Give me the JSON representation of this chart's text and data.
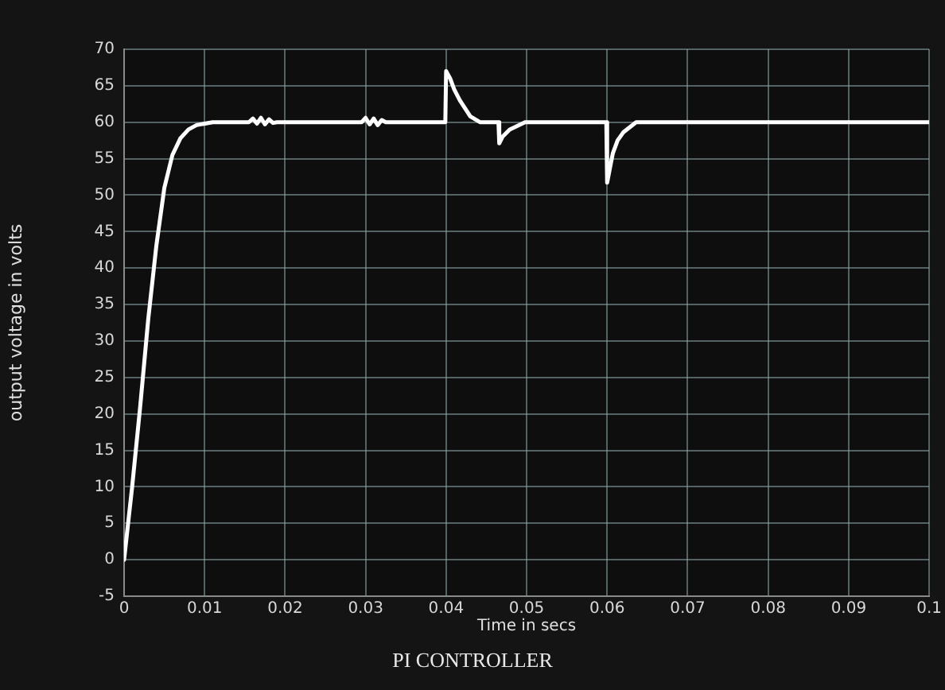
{
  "chart_data": {
    "type": "line",
    "xlabel": "Time in secs",
    "ylabel": "output voltage in volts",
    "annotations": [
      "PI CONTROLLER"
    ],
    "x": [
      0,
      0.001,
      0.002,
      0.003,
      0.004,
      0.005,
      0.006,
      0.007,
      0.008,
      0.009,
      0.011,
      0.0155,
      0.016,
      0.0165,
      0.017,
      0.0175,
      0.018,
      0.0185,
      0.019,
      0.0295,
      0.03,
      0.0305,
      0.031,
      0.0315,
      0.032,
      0.0325,
      0.0399,
      0.04,
      0.0405,
      0.041,
      0.0417,
      0.043,
      0.0442,
      0.0465,
      0.0466,
      0.047,
      0.0479,
      0.0498,
      0.0599,
      0.06,
      0.0604,
      0.0607,
      0.0613,
      0.062,
      0.0636,
      0.1
    ],
    "series": [
      {
        "color": "#ffffff",
        "values": [
          0,
          10,
          21,
          33,
          43,
          51,
          55.5,
          57.8,
          59,
          59.6,
          60,
          60,
          60.5,
          59.8,
          60.6,
          59.7,
          60.4,
          59.9,
          60,
          60,
          60.6,
          59.7,
          60.5,
          59.6,
          60.3,
          60,
          60,
          67,
          66,
          64.5,
          63,
          60.8,
          60,
          60,
          57.1,
          58,
          59,
          60,
          60,
          51.7,
          54,
          55.7,
          57.5,
          58.6,
          60,
          60
        ]
      }
    ],
    "xlim": [
      0,
      0.1
    ],
    "xticks": [
      0,
      0.01,
      0.02,
      0.03,
      0.04,
      0.05,
      0.06,
      0.07,
      0.08,
      0.09,
      0.1
    ],
    "ylim": [
      -5,
      70
    ],
    "yticks": [
      -5,
      0,
      5,
      10,
      15,
      20,
      25,
      30,
      35,
      40,
      45,
      50,
      55,
      60,
      65,
      70
    ],
    "grid": true,
    "legend": false,
    "marker": "none",
    "line_style": "solid"
  }
}
